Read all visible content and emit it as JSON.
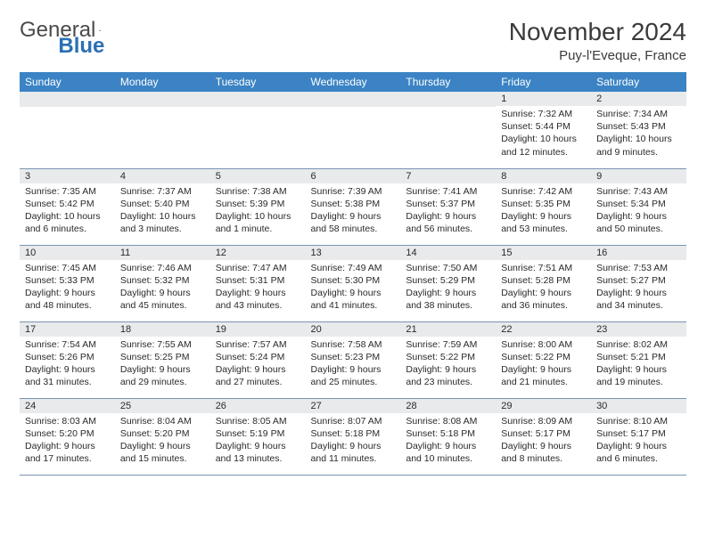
{
  "logo": {
    "general": "General",
    "blue": "Blue"
  },
  "title": "November 2024",
  "location": "Puy-l'Eveque, France",
  "colors": {
    "header_bg": "#3b83c4",
    "header_text": "#ffffff",
    "daynum_bg": "#e8eaec",
    "border": "#7a95b0",
    "logo_blue": "#2a6fb5",
    "text": "#2a2a2a"
  },
  "weekdays": [
    "Sunday",
    "Monday",
    "Tuesday",
    "Wednesday",
    "Thursday",
    "Friday",
    "Saturday"
  ],
  "weeks": [
    [
      null,
      null,
      null,
      null,
      null,
      {
        "n": "1",
        "sr": "Sunrise: 7:32 AM",
        "ss": "Sunset: 5:44 PM",
        "dl": "Daylight: 10 hours and 12 minutes."
      },
      {
        "n": "2",
        "sr": "Sunrise: 7:34 AM",
        "ss": "Sunset: 5:43 PM",
        "dl": "Daylight: 10 hours and 9 minutes."
      }
    ],
    [
      {
        "n": "3",
        "sr": "Sunrise: 7:35 AM",
        "ss": "Sunset: 5:42 PM",
        "dl": "Daylight: 10 hours and 6 minutes."
      },
      {
        "n": "4",
        "sr": "Sunrise: 7:37 AM",
        "ss": "Sunset: 5:40 PM",
        "dl": "Daylight: 10 hours and 3 minutes."
      },
      {
        "n": "5",
        "sr": "Sunrise: 7:38 AM",
        "ss": "Sunset: 5:39 PM",
        "dl": "Daylight: 10 hours and 1 minute."
      },
      {
        "n": "6",
        "sr": "Sunrise: 7:39 AM",
        "ss": "Sunset: 5:38 PM",
        "dl": "Daylight: 9 hours and 58 minutes."
      },
      {
        "n": "7",
        "sr": "Sunrise: 7:41 AM",
        "ss": "Sunset: 5:37 PM",
        "dl": "Daylight: 9 hours and 56 minutes."
      },
      {
        "n": "8",
        "sr": "Sunrise: 7:42 AM",
        "ss": "Sunset: 5:35 PM",
        "dl": "Daylight: 9 hours and 53 minutes."
      },
      {
        "n": "9",
        "sr": "Sunrise: 7:43 AM",
        "ss": "Sunset: 5:34 PM",
        "dl": "Daylight: 9 hours and 50 minutes."
      }
    ],
    [
      {
        "n": "10",
        "sr": "Sunrise: 7:45 AM",
        "ss": "Sunset: 5:33 PM",
        "dl": "Daylight: 9 hours and 48 minutes."
      },
      {
        "n": "11",
        "sr": "Sunrise: 7:46 AM",
        "ss": "Sunset: 5:32 PM",
        "dl": "Daylight: 9 hours and 45 minutes."
      },
      {
        "n": "12",
        "sr": "Sunrise: 7:47 AM",
        "ss": "Sunset: 5:31 PM",
        "dl": "Daylight: 9 hours and 43 minutes."
      },
      {
        "n": "13",
        "sr": "Sunrise: 7:49 AM",
        "ss": "Sunset: 5:30 PM",
        "dl": "Daylight: 9 hours and 41 minutes."
      },
      {
        "n": "14",
        "sr": "Sunrise: 7:50 AM",
        "ss": "Sunset: 5:29 PM",
        "dl": "Daylight: 9 hours and 38 minutes."
      },
      {
        "n": "15",
        "sr": "Sunrise: 7:51 AM",
        "ss": "Sunset: 5:28 PM",
        "dl": "Daylight: 9 hours and 36 minutes."
      },
      {
        "n": "16",
        "sr": "Sunrise: 7:53 AM",
        "ss": "Sunset: 5:27 PM",
        "dl": "Daylight: 9 hours and 34 minutes."
      }
    ],
    [
      {
        "n": "17",
        "sr": "Sunrise: 7:54 AM",
        "ss": "Sunset: 5:26 PM",
        "dl": "Daylight: 9 hours and 31 minutes."
      },
      {
        "n": "18",
        "sr": "Sunrise: 7:55 AM",
        "ss": "Sunset: 5:25 PM",
        "dl": "Daylight: 9 hours and 29 minutes."
      },
      {
        "n": "19",
        "sr": "Sunrise: 7:57 AM",
        "ss": "Sunset: 5:24 PM",
        "dl": "Daylight: 9 hours and 27 minutes."
      },
      {
        "n": "20",
        "sr": "Sunrise: 7:58 AM",
        "ss": "Sunset: 5:23 PM",
        "dl": "Daylight: 9 hours and 25 minutes."
      },
      {
        "n": "21",
        "sr": "Sunrise: 7:59 AM",
        "ss": "Sunset: 5:22 PM",
        "dl": "Daylight: 9 hours and 23 minutes."
      },
      {
        "n": "22",
        "sr": "Sunrise: 8:00 AM",
        "ss": "Sunset: 5:22 PM",
        "dl": "Daylight: 9 hours and 21 minutes."
      },
      {
        "n": "23",
        "sr": "Sunrise: 8:02 AM",
        "ss": "Sunset: 5:21 PM",
        "dl": "Daylight: 9 hours and 19 minutes."
      }
    ],
    [
      {
        "n": "24",
        "sr": "Sunrise: 8:03 AM",
        "ss": "Sunset: 5:20 PM",
        "dl": "Daylight: 9 hours and 17 minutes."
      },
      {
        "n": "25",
        "sr": "Sunrise: 8:04 AM",
        "ss": "Sunset: 5:20 PM",
        "dl": "Daylight: 9 hours and 15 minutes."
      },
      {
        "n": "26",
        "sr": "Sunrise: 8:05 AM",
        "ss": "Sunset: 5:19 PM",
        "dl": "Daylight: 9 hours and 13 minutes."
      },
      {
        "n": "27",
        "sr": "Sunrise: 8:07 AM",
        "ss": "Sunset: 5:18 PM",
        "dl": "Daylight: 9 hours and 11 minutes."
      },
      {
        "n": "28",
        "sr": "Sunrise: 8:08 AM",
        "ss": "Sunset: 5:18 PM",
        "dl": "Daylight: 9 hours and 10 minutes."
      },
      {
        "n": "29",
        "sr": "Sunrise: 8:09 AM",
        "ss": "Sunset: 5:17 PM",
        "dl": "Daylight: 9 hours and 8 minutes."
      },
      {
        "n": "30",
        "sr": "Sunrise: 8:10 AM",
        "ss": "Sunset: 5:17 PM",
        "dl": "Daylight: 9 hours and 6 minutes."
      }
    ]
  ]
}
